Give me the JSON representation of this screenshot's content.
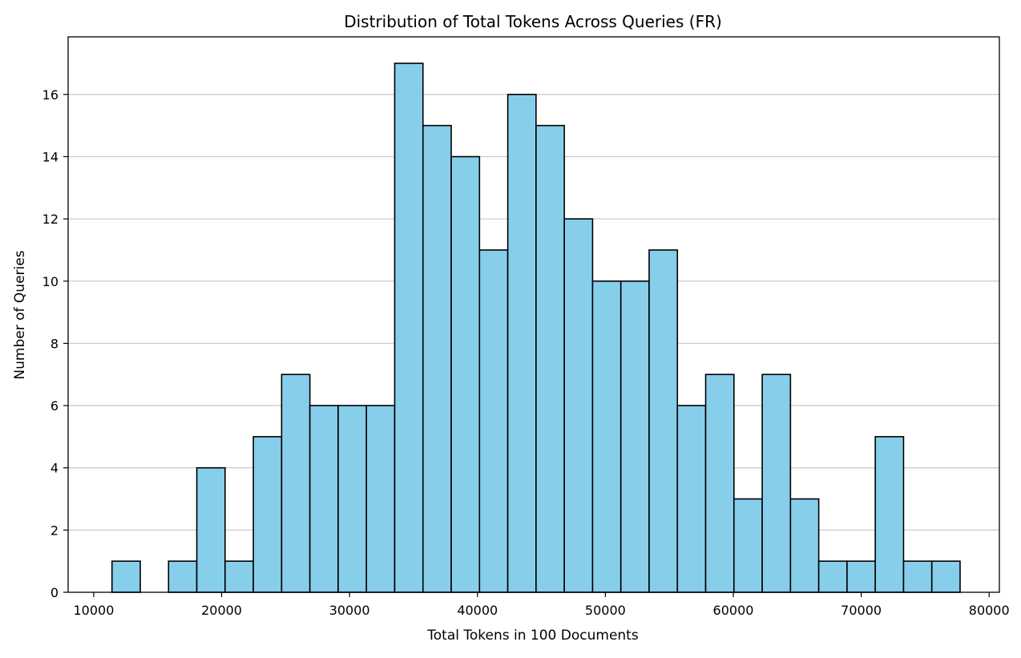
{
  "chart_data": {
    "type": "bar",
    "title": "Distribution of Total Tokens Across Queries (FR)",
    "xlabel": "Total Tokens in 100 Documents",
    "ylabel": "Number of Queries",
    "xlim": [
      8000,
      80800
    ],
    "ylim": [
      0,
      17.85
    ],
    "xticks": [
      10000,
      20000,
      30000,
      40000,
      50000,
      60000,
      70000,
      80000
    ],
    "xtick_labels": [
      "10000",
      "20000",
      "30000",
      "40000",
      "50000",
      "60000",
      "70000",
      "80000"
    ],
    "yticks": [
      0,
      2,
      4,
      6,
      8,
      10,
      12,
      14,
      16
    ],
    "ytick_labels": [
      "0",
      "2",
      "4",
      "6",
      "8",
      "10",
      "12",
      "14",
      "16"
    ],
    "bin_start": 11430,
    "bin_width": 2210,
    "values": [
      1,
      0,
      1,
      4,
      1,
      5,
      7,
      6,
      6,
      6,
      17,
      15,
      14,
      11,
      16,
      15,
      12,
      10,
      10,
      11,
      6,
      7,
      3,
      7,
      3,
      1,
      1,
      5,
      1,
      1
    ],
    "grid": "y",
    "colors": {
      "bar_fill": "#87ceeb",
      "bar_edge": "#000000",
      "grid": "#cccccc"
    }
  }
}
